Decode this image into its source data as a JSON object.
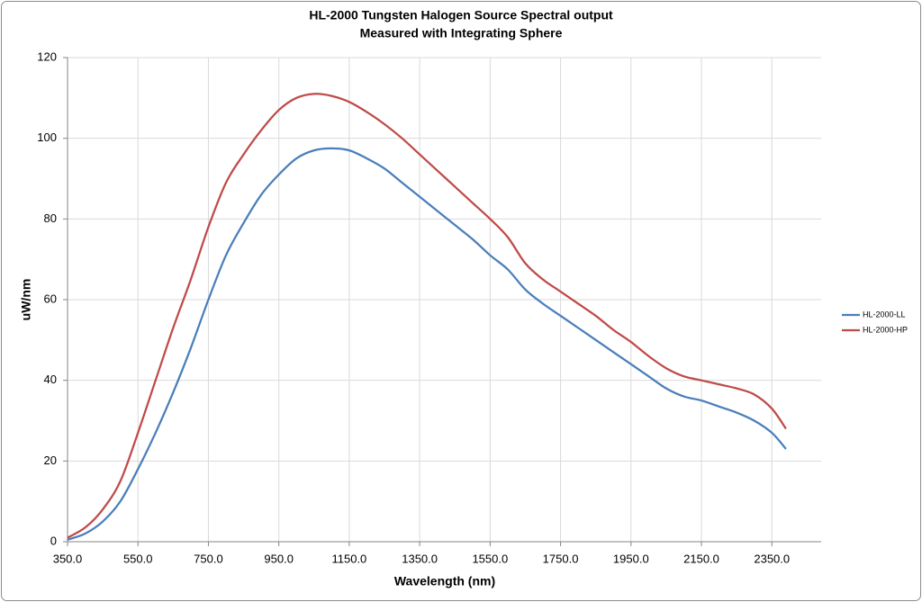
{
  "chart_data": {
    "type": "line",
    "title": [
      "HL-2000 Tungsten Halogen Source  Spectral output",
      "Measured with Integrating Sphere"
    ],
    "xlabel": "Wavelength (nm)",
    "ylabel": "uW/nm",
    "x": [
      350,
      400,
      450,
      500,
      550,
      600,
      650,
      700,
      750,
      800,
      850,
      900,
      950,
      1000,
      1050,
      1100,
      1150,
      1200,
      1250,
      1300,
      1350,
      1400,
      1450,
      1500,
      1550,
      1600,
      1650,
      1700,
      1750,
      1800,
      1850,
      1900,
      1950,
      2000,
      2050,
      2100,
      2150,
      2200,
      2250,
      2300,
      2350,
      2390
    ],
    "series": [
      {
        "name": "HL-2000-LL",
        "color": "#4a7ebb",
        "values": [
          0.5,
          2,
          5,
          10,
          18,
          27,
          37,
          48,
          60,
          71,
          79,
          86,
          91,
          95,
          97,
          97.5,
          97,
          95,
          92.5,
          89,
          85.5,
          82,
          78.5,
          75,
          71,
          67.5,
          62.5,
          59,
          56,
          53,
          50,
          47,
          44,
          41,
          38,
          36,
          35,
          33.5,
          32,
          30,
          27,
          23
        ]
      },
      {
        "name": "HL-2000-HP",
        "color": "#be4b48",
        "values": [
          1,
          3.5,
          8,
          15,
          27,
          40,
          53,
          65,
          78,
          89,
          96,
          102,
          107,
          110,
          111,
          110.5,
          109,
          106.5,
          103.5,
          100,
          96,
          92,
          88,
          84,
          80,
          75.5,
          69,
          65,
          62,
          59,
          56,
          52.5,
          49.5,
          46,
          43,
          41,
          40,
          39,
          38,
          36.5,
          33,
          28
        ]
      }
    ],
    "xlim": [
      350,
      2490
    ],
    "ylim": [
      0,
      120
    ],
    "xticks": [
      {
        "value": 350,
        "label": "350.0"
      },
      {
        "value": 550,
        "label": "550.0"
      },
      {
        "value": 750,
        "label": "750.0"
      },
      {
        "value": 950,
        "label": "950.0"
      },
      {
        "value": 1150,
        "label": "1150.0"
      },
      {
        "value": 1350,
        "label": "1350.0"
      },
      {
        "value": 1550,
        "label": "1550.0"
      },
      {
        "value": 1750,
        "label": "1750.0"
      },
      {
        "value": 1950,
        "label": "1950.0"
      },
      {
        "value": 2150,
        "label": "2150.0"
      },
      {
        "value": 2350,
        "label": "2350.0"
      }
    ],
    "yticks": [
      0,
      20,
      40,
      60,
      80,
      100,
      120
    ],
    "grid": true,
    "legend": "right"
  }
}
